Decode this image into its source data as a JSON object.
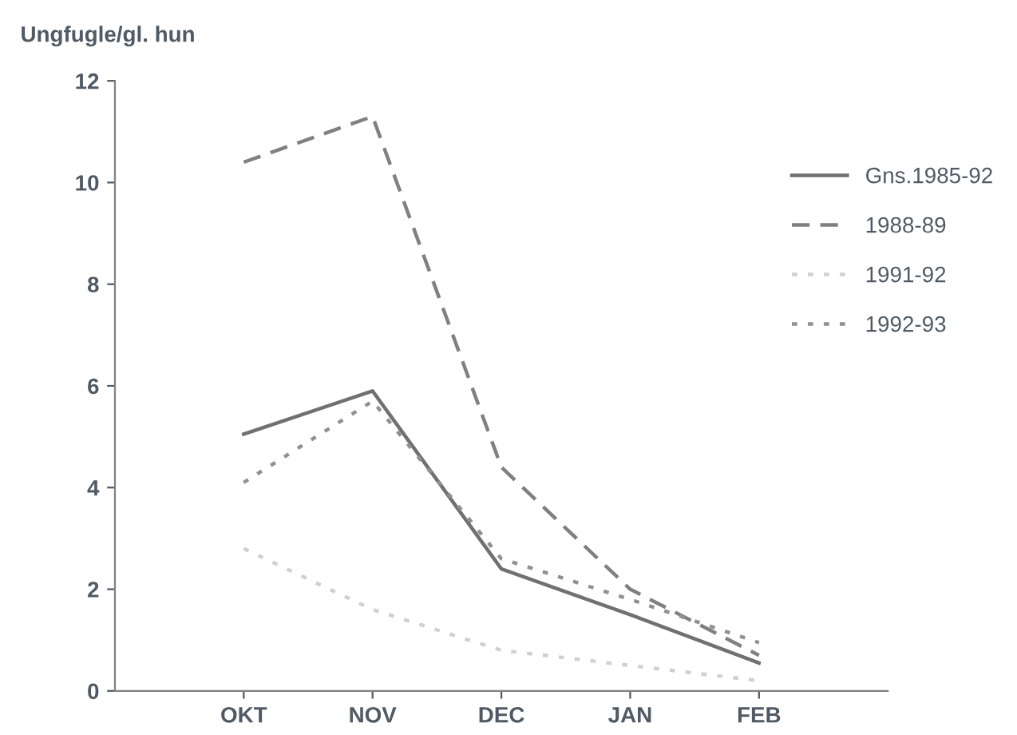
{
  "chart_data": {
    "type": "line",
    "ylabel": "Ungfugle/gl. hun",
    "categories": [
      "OKT",
      "NOV",
      "DEC",
      "JAN",
      "FEB"
    ],
    "series": [
      {
        "name": "Gns.1985-92",
        "color": "#707070",
        "line_style": "solid",
        "values": [
          5.05,
          5.9,
          2.4,
          1.5,
          0.55
        ]
      },
      {
        "name": "1988-89",
        "color": "#808080",
        "line_style": "dashed",
        "values": [
          10.4,
          11.3,
          4.4,
          2.0,
          0.7
        ]
      },
      {
        "name": "1991-92",
        "color": "#d0d0d0",
        "line_style": "dotted",
        "values": [
          2.8,
          1.6,
          0.8,
          0.5,
          0.2
        ]
      },
      {
        "name": "1992-93",
        "color": "#909090",
        "line_style": "dotted",
        "values": [
          4.1,
          5.7,
          2.6,
          1.8,
          0.95
        ]
      }
    ],
    "ylim": [
      0,
      12
    ],
    "yticks": [
      0,
      2,
      4,
      6,
      8,
      10,
      12
    ],
    "grid": false,
    "legend": "right",
    "marker": "none"
  }
}
